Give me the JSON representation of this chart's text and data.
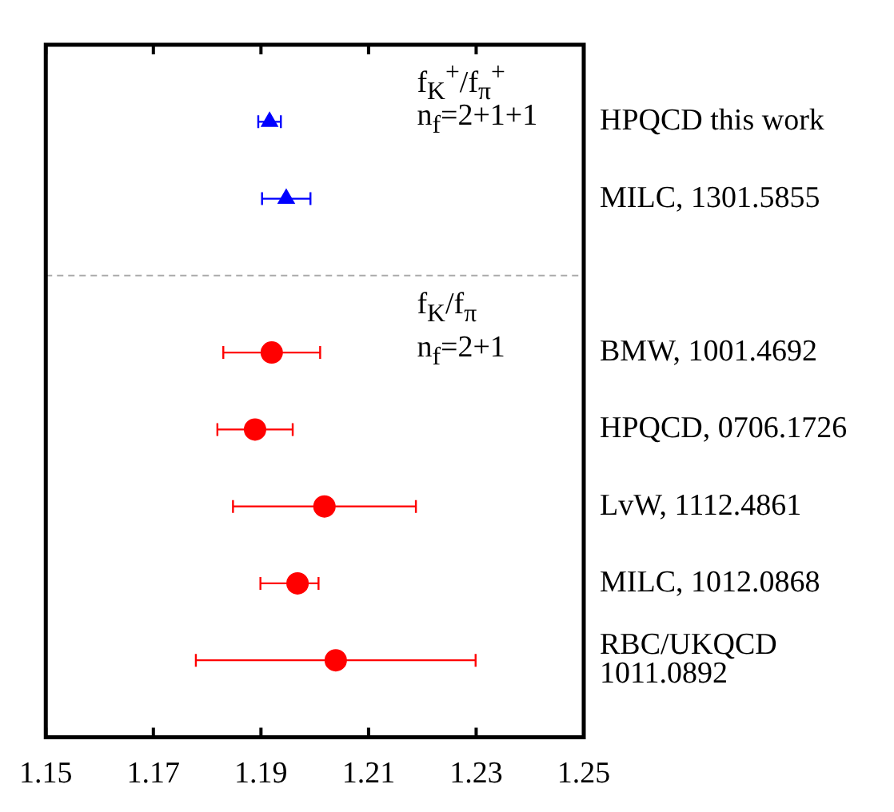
{
  "chart_data": {
    "type": "scatter",
    "orientation": "horizontal",
    "categories": [
      "HPQCD this work",
      "MILC, 1301.5855",
      null,
      "BMW, 1001.4692",
      "HPQCD, 0706.1726",
      "LvW, 1112.4861",
      "MILC, 1012.0868",
      "RBC/UKQCD\n1011.0892"
    ],
    "series": [
      {
        "color": "#0000ff",
        "marker": "triangle",
        "values": [
          1.1916,
          1.1947,
          null,
          null,
          null,
          null,
          null,
          null
        ],
        "errors": [
          0.0021,
          0.0045,
          null,
          null,
          null,
          null,
          null,
          null
        ]
      },
      {
        "color": "#ff0000",
        "marker": "circle",
        "values": [
          null,
          null,
          null,
          1.192,
          1.1889,
          1.2018,
          1.1968,
          1.2039
        ],
        "errors": [
          null,
          null,
          null,
          0.009,
          0.007,
          0.017,
          [
            1.1899,
            1.2007
          ],
          0.026
        ]
      }
    ],
    "xlim": [
      1.15,
      1.25
    ],
    "xticks": [
      1.15,
      1.17,
      1.19,
      1.21,
      1.23,
      1.25
    ],
    "ref_lines": [
      {
        "axis": "y",
        "color": "#aaaaaa",
        "line_style": "dashed"
      }
    ],
    "annotations": [
      "f$_{K}$$^{+}$/f$_{π}$$^{+}$",
      "n$_{f}$=2+1+1",
      "f$_{K}$/f$_{π}$",
      "n$_{f}$=2+1"
    ],
    "grid": false,
    "legend": false
  }
}
